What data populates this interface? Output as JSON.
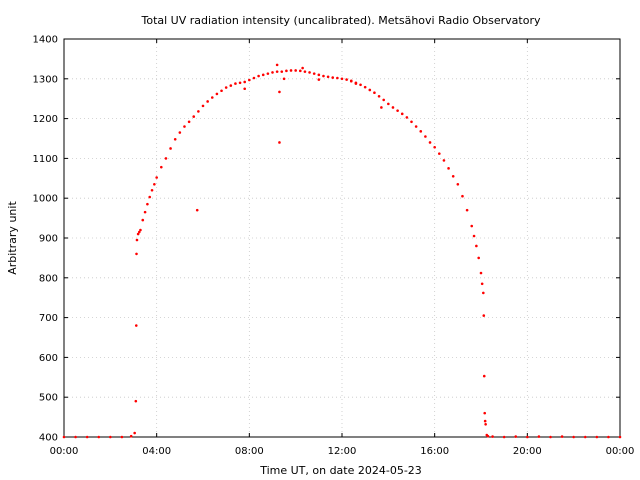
{
  "chart_data": {
    "type": "scatter",
    "title": "Total UV radiation intensity (uncalibrated). Metsähovi Radio Observatory",
    "xlabel": "Time UT, on date 2024-05-23",
    "ylabel": "Arbitrary unit",
    "xlim": [
      0,
      24
    ],
    "ylim": [
      400,
      1400
    ],
    "x_ticks": [
      0,
      4,
      8,
      12,
      16,
      20,
      24
    ],
    "x_tick_labels": [
      "00:00",
      "04:00",
      "08:00",
      "12:00",
      "16:00",
      "20:00",
      "00:00"
    ],
    "y_ticks": [
      400,
      500,
      600,
      700,
      800,
      900,
      1000,
      1100,
      1200,
      1300,
      1400
    ],
    "y_tick_labels": [
      "400",
      "500",
      "600",
      "700",
      "800",
      "900",
      "1000",
      "1100",
      "1200",
      "1300",
      "1400"
    ],
    "grid": true,
    "series": [
      {
        "color": "#ff0000",
        "points": [
          [
            0.0,
            400
          ],
          [
            0.5,
            400
          ],
          [
            1.0,
            400
          ],
          [
            1.5,
            400
          ],
          [
            2.0,
            400
          ],
          [
            2.5,
            400
          ],
          [
            2.9,
            402
          ],
          [
            3.05,
            410
          ],
          [
            3.1,
            490
          ],
          [
            3.12,
            680
          ],
          [
            3.13,
            860
          ],
          [
            3.15,
            895
          ],
          [
            3.2,
            910
          ],
          [
            3.25,
            915
          ],
          [
            3.3,
            920
          ],
          [
            3.4,
            945
          ],
          [
            3.5,
            965
          ],
          [
            3.6,
            985
          ],
          [
            3.7,
            1003
          ],
          [
            3.8,
            1020
          ],
          [
            3.9,
            1035
          ],
          [
            4.0,
            1052
          ],
          [
            4.2,
            1078
          ],
          [
            4.4,
            1100
          ],
          [
            4.6,
            1125
          ],
          [
            4.8,
            1148
          ],
          [
            5.0,
            1165
          ],
          [
            5.2,
            1180
          ],
          [
            5.4,
            1192
          ],
          [
            5.6,
            1205
          ],
          [
            5.8,
            1218
          ],
          [
            6.0,
            1232
          ],
          [
            6.2,
            1243
          ],
          [
            6.4,
            1253
          ],
          [
            6.6,
            1262
          ],
          [
            6.8,
            1270
          ],
          [
            7.0,
            1278
          ],
          [
            7.2,
            1283
          ],
          [
            7.4,
            1288
          ],
          [
            7.6,
            1290
          ],
          [
            7.8,
            1292
          ],
          [
            8.0,
            1297
          ],
          [
            8.2,
            1302
          ],
          [
            8.4,
            1307
          ],
          [
            8.6,
            1310
          ],
          [
            8.8,
            1313
          ],
          [
            9.0,
            1316
          ],
          [
            9.2,
            1318
          ],
          [
            9.4,
            1318
          ],
          [
            9.6,
            1320
          ],
          [
            9.8,
            1321
          ],
          [
            10.0,
            1321
          ],
          [
            10.2,
            1320
          ],
          [
            10.4,
            1318
          ],
          [
            10.6,
            1316
          ],
          [
            10.8,
            1313
          ],
          [
            11.0,
            1310
          ],
          [
            11.2,
            1307
          ],
          [
            11.4,
            1305
          ],
          [
            11.6,
            1303
          ],
          [
            11.8,
            1302
          ],
          [
            12.0,
            1300
          ],
          [
            12.2,
            1298
          ],
          [
            12.4,
            1294
          ],
          [
            12.6,
            1290
          ],
          [
            12.8,
            1285
          ],
          [
            13.0,
            1279
          ],
          [
            13.2,
            1272
          ],
          [
            13.4,
            1265
          ],
          [
            13.6,
            1256
          ],
          [
            13.8,
            1247
          ],
          [
            14.0,
            1237
          ],
          [
            14.2,
            1228
          ],
          [
            14.4,
            1220
          ],
          [
            14.6,
            1212
          ],
          [
            14.8,
            1203
          ],
          [
            15.0,
            1192
          ],
          [
            15.2,
            1180
          ],
          [
            15.4,
            1168
          ],
          [
            15.6,
            1155
          ],
          [
            15.8,
            1140
          ],
          [
            16.0,
            1128
          ],
          [
            16.2,
            1112
          ],
          [
            16.4,
            1095
          ],
          [
            16.6,
            1075
          ],
          [
            16.8,
            1055
          ],
          [
            17.0,
            1035
          ],
          [
            17.2,
            1005
          ],
          [
            17.4,
            970
          ],
          [
            17.6,
            930
          ],
          [
            17.7,
            905
          ],
          [
            17.8,
            880
          ],
          [
            17.9,
            850
          ],
          [
            18.0,
            812
          ],
          [
            18.05,
            785
          ],
          [
            18.1,
            762
          ],
          [
            18.12,
            705
          ],
          [
            18.14,
            553
          ],
          [
            18.16,
            460
          ],
          [
            18.18,
            440
          ],
          [
            18.2,
            432
          ],
          [
            18.25,
            405
          ],
          [
            18.3,
            402
          ],
          [
            18.5,
            401
          ],
          [
            19.0,
            400
          ],
          [
            19.5,
            401
          ],
          [
            20.0,
            400
          ],
          [
            20.5,
            401
          ],
          [
            21.0,
            400
          ],
          [
            21.5,
            401
          ],
          [
            22.0,
            400
          ],
          [
            22.5,
            400
          ],
          [
            23.0,
            400
          ],
          [
            23.5,
            400
          ],
          [
            24.0,
            400
          ],
          [
            5.75,
            970
          ],
          [
            9.3,
            1140
          ],
          [
            9.3,
            1267
          ],
          [
            9.2,
            1335
          ],
          [
            9.5,
            1300
          ],
          [
            7.8,
            1275
          ],
          [
            11.0,
            1298
          ],
          [
            12.6,
            1288
          ],
          [
            13.7,
            1228
          ],
          [
            10.3,
            1327
          ],
          [
            12.4,
            1295
          ]
        ]
      }
    ]
  }
}
